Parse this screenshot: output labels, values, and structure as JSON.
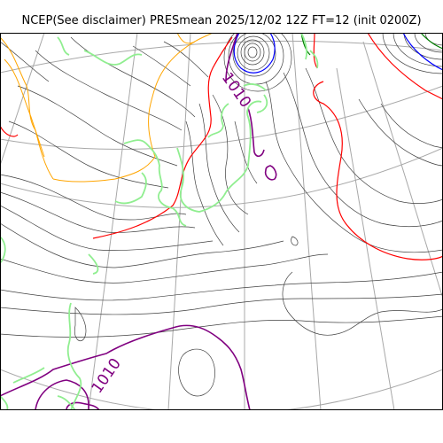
{
  "title": "NCEP(See disclaimer) PRESmean 2025/12/02 12Z FT=12 (init 0200Z)",
  "contour_labels": [
    {
      "id": "label-1010-upper",
      "text": "1010",
      "color": "#800080"
    },
    {
      "id": "label-1010-lower",
      "text": "1010",
      "color": "#800080"
    }
  ],
  "colors": {
    "isobar": "#404040",
    "graticule": "#a8a8a8",
    "isobar_1010": "#800080",
    "isobar_red": "#ff0000",
    "isobar_blue": "#0000ff",
    "isobar_green": "#008000",
    "coastline": "#90ee90",
    "terrain": "#ffa500"
  }
}
